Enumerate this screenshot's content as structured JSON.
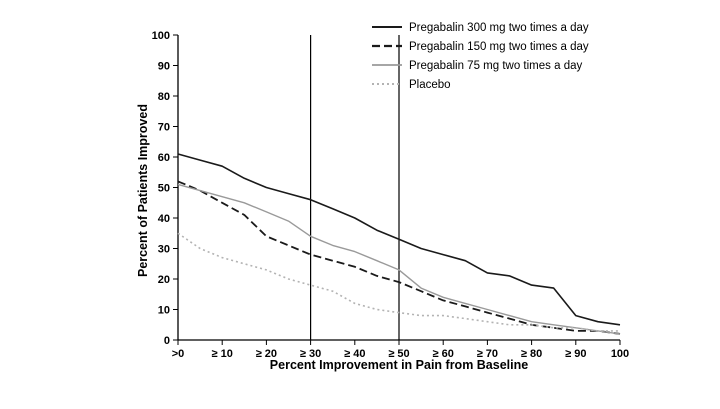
{
  "page": {
    "background": "#ffffff"
  },
  "chart_data": {
    "type": "line",
    "title": "",
    "xlabel": "Percent Improvement in Pain from Baseline",
    "ylabel": "Percent of Patients Improved",
    "xlim": [
      0,
      100
    ],
    "ylim": [
      0,
      100
    ],
    "grid": false,
    "legend_position": "top-right",
    "x_tick_values": [
      0,
      10,
      20,
      30,
      40,
      50,
      60,
      70,
      80,
      90,
      100
    ],
    "x_tick_labels": [
      ">0",
      "≥ 10",
      "≥ 20",
      "≥ 30",
      "≥ 40",
      "≥ 50",
      "≥ 60",
      "≥ 70",
      "≥ 80",
      "≥ 90",
      "100"
    ],
    "y_ticks": [
      0,
      10,
      20,
      30,
      40,
      50,
      60,
      70,
      80,
      90,
      100
    ],
    "reference_lines_x": [
      30,
      50
    ],
    "x": [
      0,
      5,
      10,
      15,
      20,
      25,
      30,
      35,
      40,
      45,
      50,
      55,
      60,
      65,
      70,
      75,
      80,
      85,
      90,
      95,
      100
    ],
    "series": [
      {
        "name": "Pregabalin 300 mg two times a day",
        "color": "#1a1a1a",
        "dash": "solid",
        "width": 1.6,
        "values": [
          61,
          59,
          57,
          53,
          50,
          48,
          46,
          43,
          40,
          36,
          33,
          30,
          28,
          26,
          22,
          21,
          18,
          17,
          8,
          6,
          5
        ]
      },
      {
        "name": "Pregabalin 150 mg two times a day",
        "color": "#1a1a1a",
        "dash": "dashed",
        "width": 1.8,
        "values": [
          52,
          49,
          45,
          41,
          34,
          31,
          28,
          26,
          24,
          21,
          19,
          16,
          13,
          11,
          9,
          7,
          5,
          4,
          3,
          3,
          2
        ]
      },
      {
        "name": "Pregabalin 75 mg two times a day",
        "color": "#9a9a9a",
        "dash": "solid",
        "width": 1.4,
        "values": [
          51,
          49,
          47,
          45,
          42,
          39,
          34,
          31,
          29,
          26,
          23,
          17,
          14,
          12,
          10,
          8,
          6,
          5,
          4,
          3,
          2
        ]
      },
      {
        "name": "Placebo",
        "color": "#b3b3b3",
        "dash": "dotted",
        "width": 1.6,
        "values": [
          35,
          30,
          27,
          25,
          23,
          20,
          18,
          16,
          12,
          10,
          9,
          8,
          8,
          7,
          6,
          5,
          5,
          4,
          4,
          3,
          3
        ]
      }
    ]
  }
}
